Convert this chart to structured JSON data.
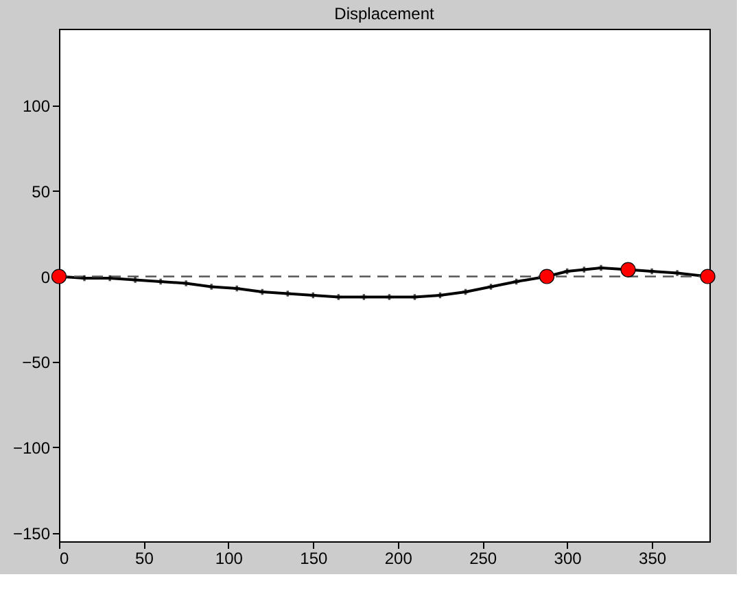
{
  "chart_data": {
    "type": "line",
    "title": "Displacement",
    "xlim": [
      0,
      384
    ],
    "ylim": [
      -155,
      145
    ],
    "xticks": [
      0,
      50,
      100,
      150,
      200,
      250,
      300,
      350
    ],
    "yticks": [
      -150,
      -100,
      -50,
      0,
      50,
      100
    ],
    "grid": false,
    "marker": "cross",
    "line_style": "solid",
    "ref_lines": [
      {
        "axis": "y",
        "value": 0,
        "color": "#555555",
        "line_style": "dashed"
      }
    ],
    "series": [
      {
        "color": "#000000",
        "x": [
          0,
          15,
          30,
          45,
          60,
          75,
          90,
          105,
          120,
          135,
          150,
          165,
          180,
          195,
          210,
          225,
          240,
          255,
          270,
          288,
          300,
          310,
          320,
          336,
          350,
          365,
          383
        ],
        "values": [
          0,
          -1,
          -1,
          -2,
          -3,
          -4,
          -6,
          -7,
          -9,
          -10,
          -11,
          -12,
          -12,
          -12,
          -12,
          -11,
          -9,
          -6,
          -3,
          0,
          3,
          4,
          5,
          4,
          3,
          2,
          0
        ]
      },
      {
        "type": "scatter",
        "color": "#ff0000",
        "marker": "circle",
        "x": [
          0,
          288,
          336,
          383
        ],
        "values": [
          0,
          0,
          4,
          0
        ]
      }
    ]
  }
}
